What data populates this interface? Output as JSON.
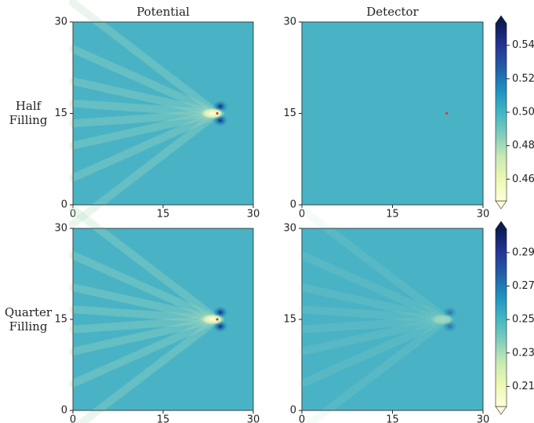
{
  "row_labels": [
    [
      "Half",
      "Filling"
    ],
    [
      "Quarter",
      "Filling"
    ]
  ],
  "chart_data": [
    {
      "type": "heatmap",
      "title": "Potential",
      "xlim": [
        0,
        30
      ],
      "ylim": [
        0,
        30
      ],
      "xticks": [
        0,
        15,
        30
      ],
      "yticks": [
        0,
        15,
        30
      ],
      "marker": {
        "x": 24,
        "y": 15,
        "color": "#e0301e"
      }
    },
    {
      "type": "heatmap",
      "title": "Detector",
      "xlim": [
        0,
        30
      ],
      "ylim": [
        0,
        30
      ],
      "xticks": [
        0,
        15,
        30
      ],
      "yticks": [
        0,
        15,
        30
      ],
      "marker": {
        "x": 24,
        "y": 15,
        "color": "#e0301e"
      }
    },
    {
      "type": "heatmap",
      "xlim": [
        0,
        30
      ],
      "ylim": [
        0,
        30
      ],
      "xticks": [
        0,
        15,
        30
      ],
      "yticks": [
        0,
        15,
        30
      ],
      "marker": {
        "x": 24,
        "y": 15,
        "color": "#e0301e"
      }
    },
    {
      "type": "heatmap",
      "xlim": [
        0,
        30
      ],
      "ylim": [
        0,
        30
      ],
      "xticks": [
        0,
        15,
        30
      ],
      "yticks": [
        0,
        15,
        30
      ]
    }
  ],
  "colorbars": [
    {
      "lim": [
        0.447,
        0.553
      ],
      "ticks": [
        0.46,
        0.48,
        {
          "value": 0.5,
          "label": "0.50"
        },
        0.52,
        0.54
      ],
      "colormap": "YlGnBu"
    },
    {
      "lim": [
        0.198,
        0.304
      ],
      "ticks": [
        0.21,
        0.23,
        0.25,
        0.27,
        0.29
      ],
      "colormap": "YlGnBu"
    }
  ]
}
